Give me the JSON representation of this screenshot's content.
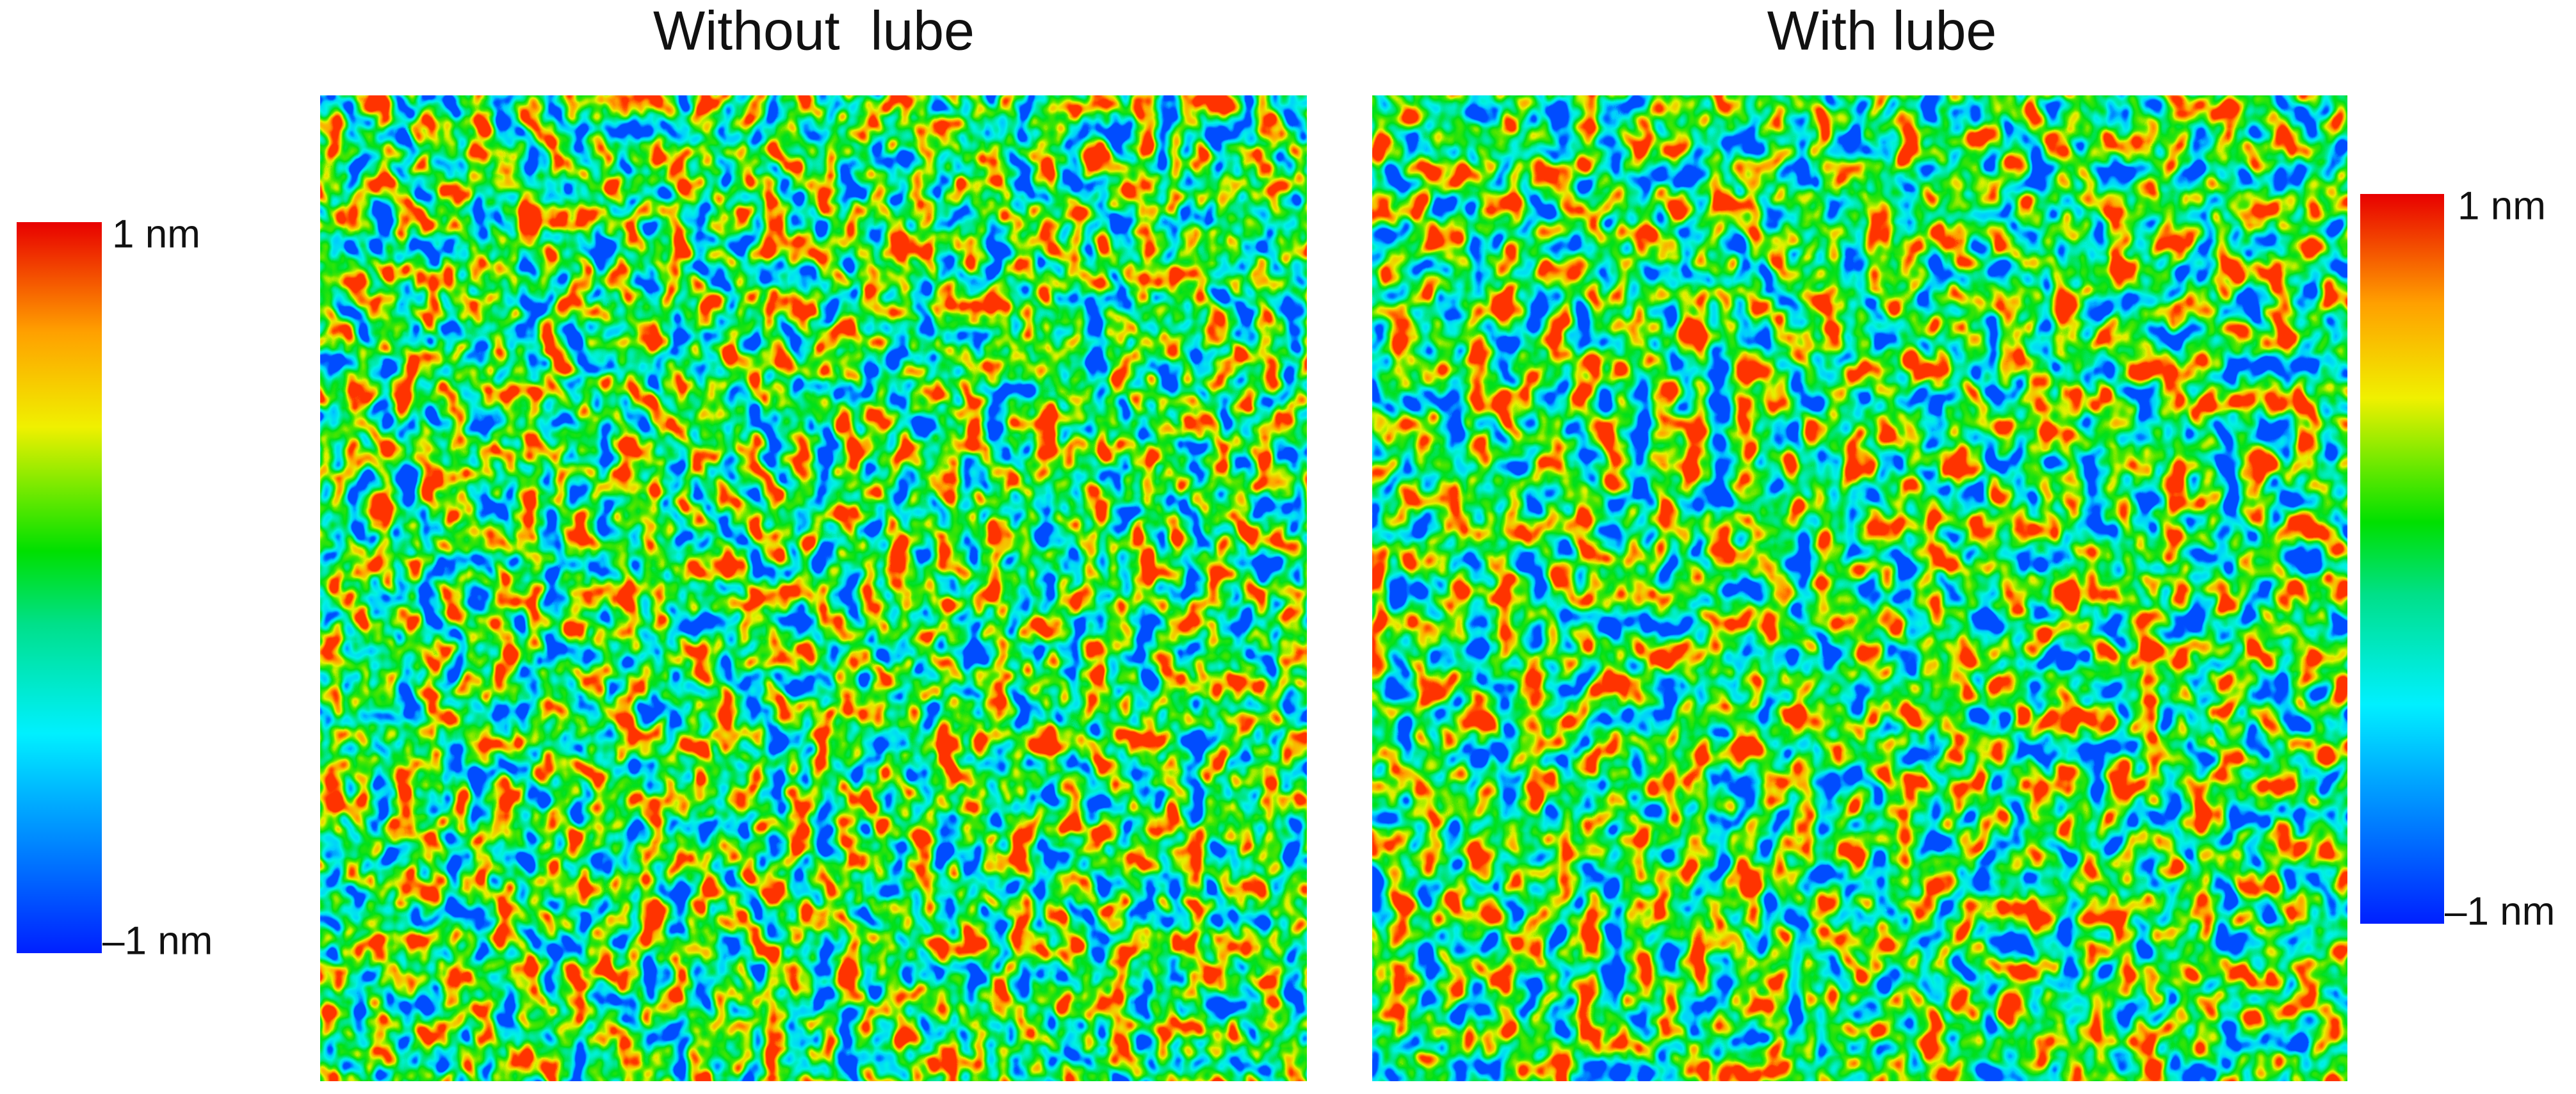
{
  "panels": [
    {
      "title": "Without  lube",
      "colorbar": {
        "max_label": "1 nm",
        "min_label": "–1 nm"
      }
    },
    {
      "title": "With lube",
      "colorbar": {
        "max_label": "1 nm",
        "min_label": "–1 nm"
      }
    }
  ]
}
